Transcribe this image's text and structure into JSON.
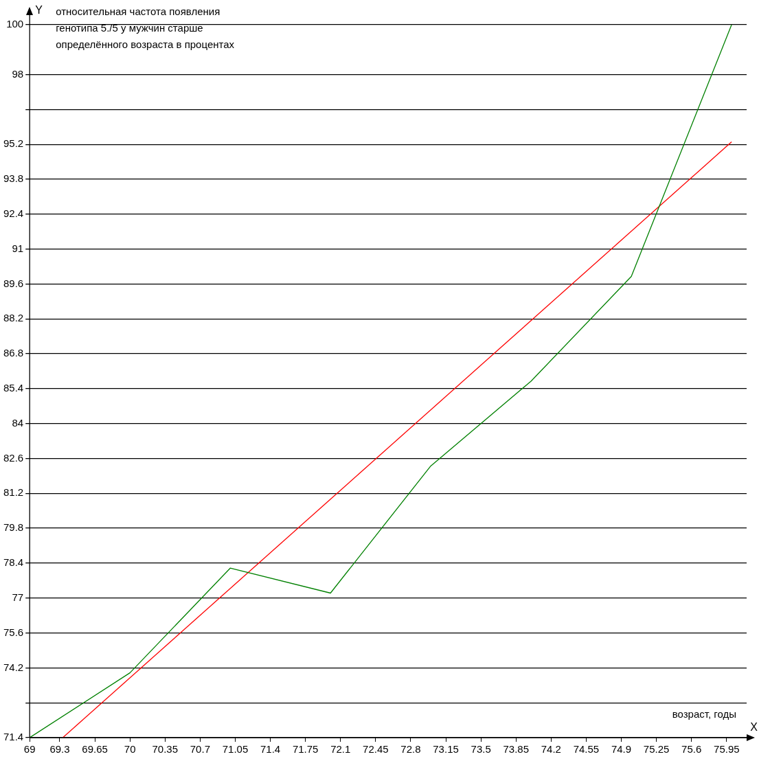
{
  "chart_data": {
    "type": "line",
    "title": "относительная частота появления\nгенотипа 5./5 у мужчин старше\nопределённого возраста в процентах",
    "xlabel": "X",
    "ylabel": "Y",
    "annotations": [
      "возраст, годы"
    ],
    "series": [
      {
        "color": "#008000",
        "x": [
          69,
          70,
          71,
          72,
          73,
          74,
          75,
          76
        ],
        "values": [
          71.4,
          74,
          78.2,
          77.2,
          82.3,
          85.7,
          89.9,
          100
        ]
      },
      {
        "color": "#ff0000",
        "x": [
          69.33,
          76
        ],
        "values": [
          71.4,
          95.3
        ]
      }
    ],
    "xlim": [
      69,
      76.15
    ],
    "xticks": [
      69,
      69.3,
      69.65,
      70,
      70.35,
      70.7,
      71.05,
      71.4,
      71.75,
      72.1,
      72.45,
      72.8,
      73.15,
      73.5,
      73.85,
      74.2,
      74.55,
      74.9,
      75.25,
      75.6,
      75.95
    ],
    "ylim": [
      71.4,
      100
    ],
    "yticks": [
      71.4,
      {
        "value": 72.8,
        "label": null
      },
      74.2,
      75.6,
      77,
      78.4,
      79.8,
      81.2,
      82.6,
      84,
      85.4,
      86.8,
      88.2,
      89.6,
      91,
      92.4,
      93.8,
      95.2,
      {
        "value": 96.6,
        "label": null
      },
      98,
      100
    ],
    "grid": "y",
    "legend": false,
    "marker": "none",
    "line_style": "solid"
  }
}
